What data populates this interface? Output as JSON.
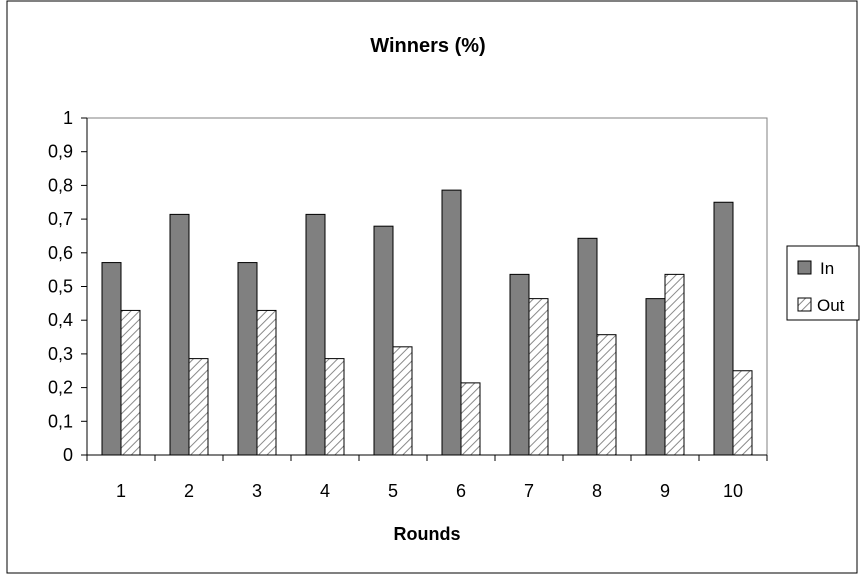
{
  "chart_data": {
    "type": "bar",
    "title": "Winners (%)",
    "xlabel": "Rounds",
    "ylabel": "",
    "categories": [
      "1",
      "2",
      "3",
      "4",
      "5",
      "6",
      "7",
      "8",
      "9",
      "10"
    ],
    "series": [
      {
        "name": "In",
        "values": [
          0.571,
          0.714,
          0.571,
          0.714,
          0.679,
          0.786,
          0.536,
          0.643,
          0.464,
          0.75
        ],
        "color": "#808080",
        "pattern": "solid"
      },
      {
        "name": "Out",
        "values": [
          0.429,
          0.286,
          0.429,
          0.286,
          0.321,
          0.214,
          0.464,
          0.357,
          0.536,
          0.25
        ],
        "color": "#ffffff",
        "pattern": "diagonal-hatch"
      }
    ],
    "ylim": [
      0,
      1
    ],
    "yticks": [
      "0",
      "0,1",
      "0,2",
      "0,3",
      "0,4",
      "0,5",
      "0,6",
      "0,7",
      "0,8",
      "0,9",
      "1"
    ],
    "grid": false,
    "legend": "right",
    "plot_background": "#ffffff"
  }
}
